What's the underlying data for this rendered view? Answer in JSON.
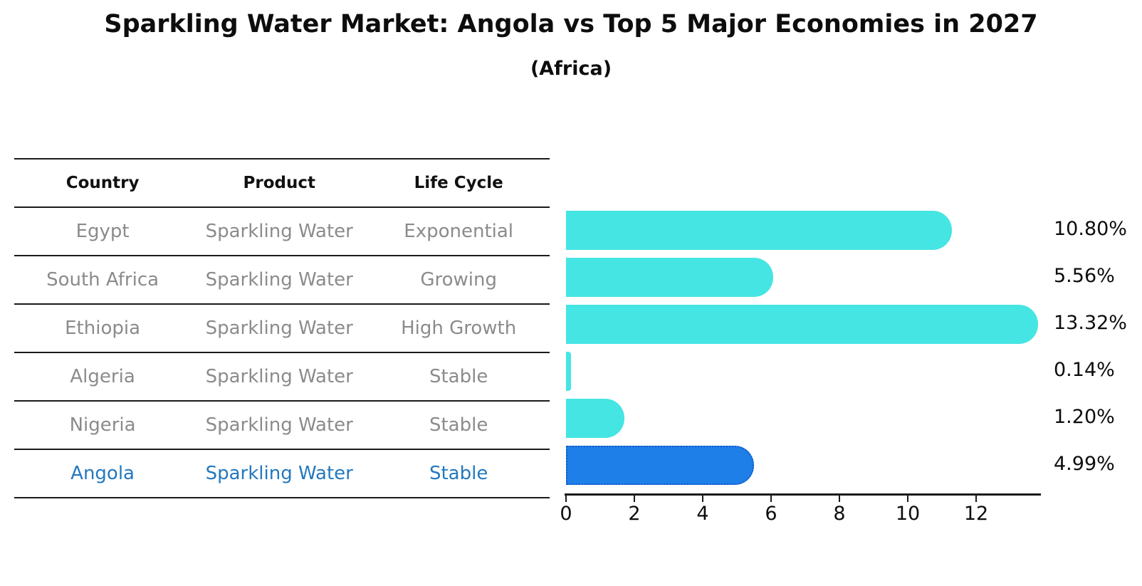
{
  "title": "Sparkling Water Market: Angola vs Top 5 Major Economies in 2027",
  "subtitle": "(Africa)",
  "table": {
    "headers": [
      "Country",
      "Product",
      "Life Cycle"
    ],
    "rows": [
      {
        "country": "Egypt",
        "product": "Sparkling Water",
        "life_cycle": "Exponential",
        "highlight": false
      },
      {
        "country": "South Africa",
        "product": "Sparkling Water",
        "life_cycle": "Growing",
        "highlight": false
      },
      {
        "country": "Ethiopia",
        "product": "Sparkling Water",
        "life_cycle": "High Growth",
        "highlight": false
      },
      {
        "country": "Algeria",
        "product": "Sparkling Water",
        "life_cycle": "Stable",
        "highlight": false
      },
      {
        "country": "Nigeria",
        "product": "Sparkling Water",
        "life_cycle": "Stable",
        "highlight": false
      },
      {
        "country": "Angola",
        "product": "Sparkling Water",
        "life_cycle": "Stable",
        "highlight": true
      }
    ]
  },
  "chart_data": {
    "type": "bar",
    "orientation": "horizontal",
    "title": "Sparkling Water Market: Angola vs Top 5 Major Economies in 2027",
    "subtitle": "(Africa)",
    "categories": [
      "Egypt",
      "South Africa",
      "Ethiopia",
      "Algeria",
      "Nigeria",
      "Angola"
    ],
    "values": [
      10.8,
      5.56,
      13.32,
      0.14,
      1.2,
      4.99
    ],
    "value_labels": [
      "10.80%",
      "5.56%",
      "13.32%",
      "0.14%",
      "1.20%",
      "4.99%"
    ],
    "highlight_index": 5,
    "xlabel": "",
    "ylabel": "",
    "xticks": [
      0,
      2,
      4,
      6,
      8,
      10,
      12
    ],
    "xlim": [
      0,
      14
    ],
    "grid": false,
    "legend": false
  },
  "colors": {
    "bar_default": "#45e5e3",
    "bar_highlight": "#1f7fe8",
    "bar_highlight_border": "#1457c9",
    "row_text": "#8b8b8b",
    "highlight_text": "#2478be",
    "axis": "#1a1a1a",
    "label_text": "#0d0d0d"
  }
}
